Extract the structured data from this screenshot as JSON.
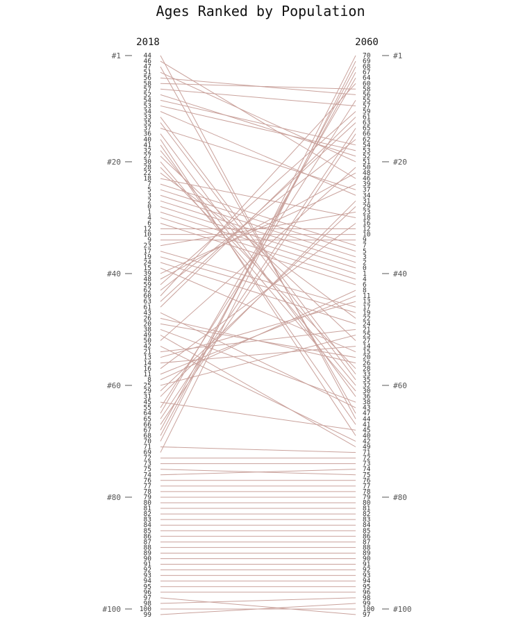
{
  "chart_data": {
    "type": "slope",
    "title": "Ages Ranked by Population",
    "left_year": "2018",
    "right_year": "2060",
    "rank_ticks": [
      "#1",
      "#20",
      "#40",
      "#60",
      "#80",
      "#100"
    ],
    "line_color": "#c9a19b",
    "left_order": [
      44,
      46,
      47,
      51,
      56,
      58,
      57,
      52,
      54,
      53,
      34,
      33,
      35,
      37,
      36,
      40,
      41,
      32,
      27,
      30,
      28,
      22,
      18,
      7,
      5,
      3,
      2,
      0,
      1,
      4,
      6,
      12,
      10,
      9,
      23,
      17,
      19,
      24,
      15,
      39,
      48,
      59,
      62,
      60,
      63,
      61,
      43,
      26,
      20,
      38,
      49,
      50,
      42,
      21,
      13,
      14,
      16,
      11,
      8,
      25,
      29,
      31,
      45,
      55,
      64,
      65,
      66,
      67,
      68,
      70,
      71,
      69,
      72,
      73,
      75,
      74,
      76,
      77,
      78,
      79,
      80,
      81,
      82,
      83,
      84,
      85,
      86,
      87,
      88,
      89,
      90,
      91,
      92,
      93,
      94,
      95,
      96,
      97,
      98,
      100,
      99
    ],
    "right_order": [
      70,
      69,
      68,
      67,
      64,
      60,
      58,
      56,
      55,
      57,
      59,
      61,
      63,
      65,
      66,
      62,
      54,
      53,
      52,
      51,
      50,
      48,
      46,
      39,
      37,
      34,
      31,
      29,
      23,
      18,
      16,
      12,
      10,
      9,
      7,
      5,
      3,
      2,
      0,
      1,
      4,
      6,
      8,
      11,
      13,
      17,
      19,
      22,
      24,
      21,
      25,
      27,
      14,
      15,
      20,
      26,
      28,
      33,
      35,
      32,
      30,
      36,
      38,
      43,
      47,
      44,
      41,
      45,
      40,
      42,
      49,
      71,
      72,
      73,
      74,
      75,
      76,
      77,
      78,
      79,
      80,
      81,
      82,
      83,
      84,
      85,
      86,
      87,
      88,
      89,
      90,
      91,
      92,
      93,
      94,
      95,
      96,
      98,
      99,
      100,
      97
    ]
  }
}
